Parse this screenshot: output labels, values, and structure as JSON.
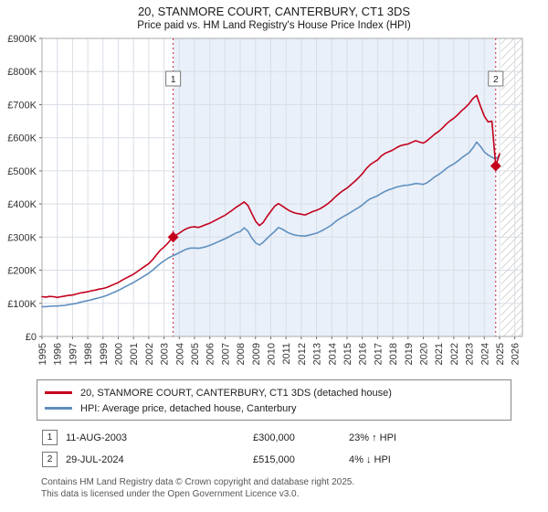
{
  "header": {
    "title": "20, STANMORE COURT, CANTERBURY, CT1 3DS",
    "subtitle": "Price paid vs. HM Land Registry's House Price Index (HPI)"
  },
  "chart_data": {
    "type": "line",
    "y_unit": "GBP thousands",
    "xlim": [
      1995,
      2026.5
    ],
    "ylim": [
      0,
      900
    ],
    "xticks": [
      1995,
      1996,
      1997,
      1998,
      1999,
      2000,
      2001,
      2002,
      2003,
      2004,
      2005,
      2006,
      2007,
      2008,
      2009,
      2010,
      2011,
      2012,
      2013,
      2014,
      2015,
      2016,
      2017,
      2018,
      2019,
      2020,
      2021,
      2022,
      2023,
      2024,
      2025,
      2026
    ],
    "yticks": [
      0,
      100,
      200,
      300,
      400,
      500,
      600,
      700,
      800,
      900
    ],
    "ytick_labels": [
      "£0",
      "£100K",
      "£200K",
      "£300K",
      "£400K",
      "£500K",
      "£600K",
      "£700K",
      "£800K",
      "£900K"
    ],
    "x_start": 1995,
    "x_step": 0.25,
    "band": {
      "x0": 2003.6,
      "x1": 2024.75
    },
    "hatch": {
      "x0": 2025.1,
      "x1": 2026.5
    },
    "series": [
      {
        "name": "price-paid",
        "label": "20, STANMORE COURT, CANTERBURY, CT1 3DS (detached house)",
        "color": "#c4001d",
        "values": [
          120,
          119,
          121,
          120,
          118,
          120,
          122,
          124,
          125,
          128,
          131,
          133,
          135,
          138,
          140,
          143,
          145,
          148,
          153,
          158,
          163,
          170,
          176,
          182,
          188,
          196,
          204,
          212,
          220,
          232,
          246,
          260,
          270,
          282,
          295,
          305,
          312,
          320,
          326,
          330,
          331,
          329,
          333,
          338,
          342,
          348,
          354,
          360,
          366,
          374,
          382,
          391,
          398,
          406,
          396,
          372,
          348,
          335,
          344,
          362,
          378,
          393,
          401,
          394,
          386,
          379,
          374,
          371,
          369,
          367,
          372,
          377,
          381,
          386,
          393,
          401,
          411,
          422,
          432,
          441,
          448,
          458,
          468,
          479,
          491,
          506,
          518,
          526,
          533,
          545,
          553,
          558,
          563,
          570,
          576,
          579,
          581,
          586,
          591,
          587,
          584,
          591,
          601,
          611,
          619,
          629,
          641,
          651,
          659,
          669,
          681,
          691,
          703,
          718,
          728,
          695,
          665,
          648,
          650,
          515,
          552
        ]
      },
      {
        "name": "hpi",
        "label": "HPI: Average price, detached house, Canterbury",
        "color": "#5f8fbf",
        "values": [
          90,
          90,
          91,
          92,
          92,
          93,
          94,
          96,
          98,
          100,
          103,
          106,
          108,
          111,
          114,
          117,
          120,
          124,
          129,
          134,
          139,
          145,
          151,
          157,
          163,
          170,
          177,
          184,
          191,
          200,
          210,
          220,
          228,
          236,
          242,
          247,
          253,
          259,
          264,
          267,
          267,
          266,
          268,
          271,
          275,
          280,
          285,
          290,
          295,
          301,
          307,
          313,
          317,
          328,
          318,
          298,
          283,
          276,
          284,
          296,
          307,
          317,
          329,
          324,
          317,
          311,
          307,
          305,
          304,
          303,
          306,
          309,
          312,
          317,
          323,
          330,
          337,
          347,
          355,
          362,
          368,
          375,
          382,
          389,
          397,
          407,
          415,
          420,
          425,
          432,
          438,
          443,
          447,
          451,
          454,
          456,
          457,
          459,
          462,
          461,
          459,
          464,
          473,
          482,
          489,
          497,
          507,
          515,
          521,
          529,
          539,
          547,
          555,
          569,
          587,
          574,
          557,
          548,
          541,
          536,
          548
        ]
      }
    ],
    "sales": [
      {
        "n": "1",
        "x": 2003.6,
        "y": 300,
        "date": "11-AUG-2003",
        "price": "£300,000",
        "pct": "23% ↑ HPI"
      },
      {
        "n": "2",
        "x": 2024.75,
        "y": 515,
        "date": "29-JUL-2024",
        "price": "£515,000",
        "pct": "4% ↓ HPI"
      }
    ],
    "colors": {
      "band": "#e9f0f9",
      "sale_line": "#cc2233",
      "marker": "#c4001d",
      "grid": "#d9dee6",
      "axis": "#aaaaaa",
      "hatch_line": "#bbbbbb"
    }
  },
  "footer": {
    "line1": "Contains HM Land Registry data © Crown copyright and database right 2025.",
    "line2": "This data is licensed under the Open Government Licence v3.0."
  }
}
